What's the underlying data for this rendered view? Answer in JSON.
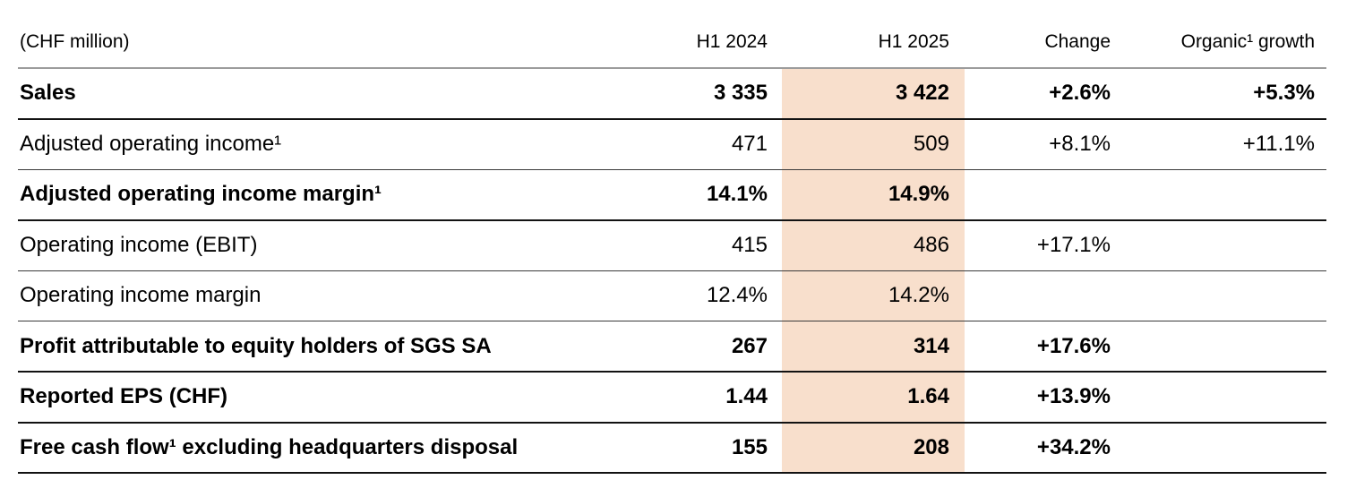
{
  "table": {
    "unit_label": "(CHF million)",
    "highlight_color": "#f8dfcc",
    "columns": [
      "H1 2024",
      "H1 2025",
      "Change",
      "Organic¹ growth"
    ],
    "rows": [
      {
        "label": "Sales",
        "h1_2024": "3 335",
        "h1_2025": "3 422",
        "change": "+2.6%",
        "organic": "+5.3%"
      },
      {
        "label": "Adjusted operating income¹",
        "h1_2024": "471",
        "h1_2025": "509",
        "change": "+8.1%",
        "organic": "+11.1%"
      },
      {
        "label": "Adjusted operating income margin¹",
        "h1_2024": "14.1%",
        "h1_2025": "14.9%",
        "change": "",
        "organic": ""
      },
      {
        "label": "Operating income (EBIT)",
        "h1_2024": "415",
        "h1_2025": "486",
        "change": "+17.1%",
        "organic": ""
      },
      {
        "label": "Operating income margin",
        "h1_2024": "12.4%",
        "h1_2025": "14.2%",
        "change": "",
        "organic": ""
      },
      {
        "label": "Profit attributable to equity holders of SGS SA",
        "h1_2024": "267",
        "h1_2025": "314",
        "change": "+17.6%",
        "organic": ""
      },
      {
        "label": "Reported EPS (CHF)",
        "h1_2024": "1.44",
        "h1_2025": "1.64",
        "change": "+13.9%",
        "organic": ""
      },
      {
        "label": "Free cash flow¹ excluding headquarters disposal",
        "h1_2024": "155",
        "h1_2025": "208",
        "change": "+34.2%",
        "organic": ""
      }
    ]
  }
}
